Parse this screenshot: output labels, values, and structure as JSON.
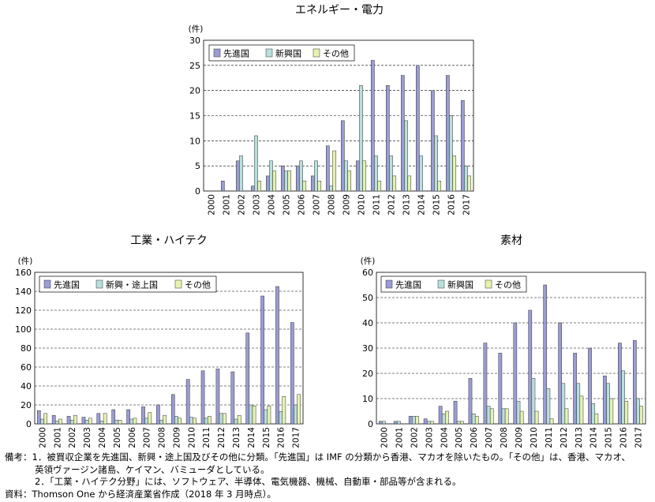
{
  "chart_data": [
    {
      "type": "bar",
      "title": "エネルギー・電力",
      "ylabel": "(件)",
      "ylim": [
        0,
        30
      ],
      "yticks": [
        0,
        5,
        10,
        15,
        20,
        25,
        30
      ],
      "grid": true,
      "legend_position": "top-left",
      "categories": [
        "2000",
        "2001",
        "2002",
        "2003",
        "2004",
        "2005",
        "2006",
        "2007",
        "2008",
        "2009",
        "2010",
        "2011",
        "2012",
        "2013",
        "2014",
        "2015",
        "2016",
        "2017"
      ],
      "series": [
        {
          "name": "先進国",
          "color": "#9b9cd4",
          "values": [
            0,
            2,
            6,
            1,
            3,
            5,
            5,
            3,
            9,
            14,
            6,
            26,
            21,
            23,
            25,
            20,
            23,
            18
          ]
        },
        {
          "name": "新興国",
          "color": "#b8e0dc",
          "values": [
            0,
            0,
            7,
            11,
            6,
            4,
            6,
            6,
            1,
            6,
            21,
            7,
            7,
            14,
            7,
            11,
            15,
            5
          ]
        },
        {
          "name": "その他",
          "color": "#e6f2b0",
          "values": [
            0,
            0,
            0,
            2,
            4,
            4,
            2,
            2,
            8,
            4,
            6,
            2,
            3,
            3,
            0,
            2,
            7,
            3
          ]
        }
      ]
    },
    {
      "type": "bar",
      "title": "工業・ハイテク",
      "ylabel": "(件)",
      "ylim": [
        0,
        160
      ],
      "yticks": [
        0,
        20,
        40,
        60,
        80,
        100,
        120,
        140,
        160
      ],
      "grid": true,
      "legend_position": "top-left",
      "categories": [
        "2000",
        "2001",
        "2002",
        "2003",
        "2004",
        "2005",
        "2006",
        "2007",
        "2008",
        "2009",
        "2010",
        "2011",
        "2012",
        "2013",
        "2014",
        "2015",
        "2016",
        "2017"
      ],
      "series": [
        {
          "name": "先進国",
          "color": "#9b9cd4",
          "values": [
            14,
            9,
            8,
            7,
            11,
            15,
            15,
            18,
            20,
            31,
            47,
            56,
            58,
            55,
            96,
            135,
            145,
            107
          ]
        },
        {
          "name": "新興・途上国",
          "color": "#b8e0dc",
          "values": [
            5,
            3,
            4,
            4,
            3,
            4,
            5,
            6,
            4,
            8,
            7,
            6,
            11,
            5,
            20,
            15,
            13,
            20
          ]
        },
        {
          "name": "その他",
          "color": "#e6f2b0",
          "values": [
            11,
            5,
            9,
            6,
            11,
            4,
            6,
            12,
            9,
            6,
            6,
            8,
            11,
            9,
            19,
            19,
            29,
            31
          ]
        }
      ]
    },
    {
      "type": "bar",
      "title": "素材",
      "ylabel": "(件)",
      "ylim": [
        0,
        60
      ],
      "yticks": [
        0,
        10,
        20,
        30,
        40,
        50,
        60
      ],
      "grid": true,
      "legend_position": "top-left",
      "categories": [
        "2000",
        "2001",
        "2002",
        "2003",
        "2004",
        "2005",
        "2006",
        "2007",
        "2008",
        "2009",
        "2010",
        "2011",
        "2012",
        "2013",
        "2014",
        "2015",
        "2016",
        "2017"
      ],
      "series": [
        {
          "name": "先進国",
          "color": "#9b9cd4",
          "values": [
            1,
            1,
            3,
            2,
            7,
            9,
            18,
            32,
            28,
            40,
            45,
            55,
            40,
            28,
            30,
            19,
            32,
            33
          ]
        },
        {
          "name": "新興国",
          "color": "#b8e0dc",
          "values": [
            1,
            1,
            3,
            1,
            4,
            1,
            4,
            7,
            6,
            9,
            18,
            14,
            16,
            16,
            8,
            16,
            21,
            10
          ]
        },
        {
          "name": "その他",
          "color": "#e6f2b0",
          "values": [
            0,
            0,
            3,
            1,
            5,
            1,
            3,
            6,
            6,
            5,
            5,
            2,
            6,
            11,
            4,
            10,
            9,
            7
          ]
        }
      ]
    }
  ],
  "notes": {
    "line1": "備考：1．被買収企業を先進国、新興・途上国及びその他に分類。「先進国」は IMF の分類から香港、マカオを除いたもの。「その他」は、香港、マカオ、",
    "line2": "英領ヴァージン諸島、ケイマン、バミューダとしている。",
    "line3": "2．「工業・ハイテク分野」には、ソフトウェア、半導体、電気機器、機械、自動車・部品等が含まれる。",
    "line4": "資料：Thomson One から経済産業省作成（2018 年 3 月時点）。"
  }
}
